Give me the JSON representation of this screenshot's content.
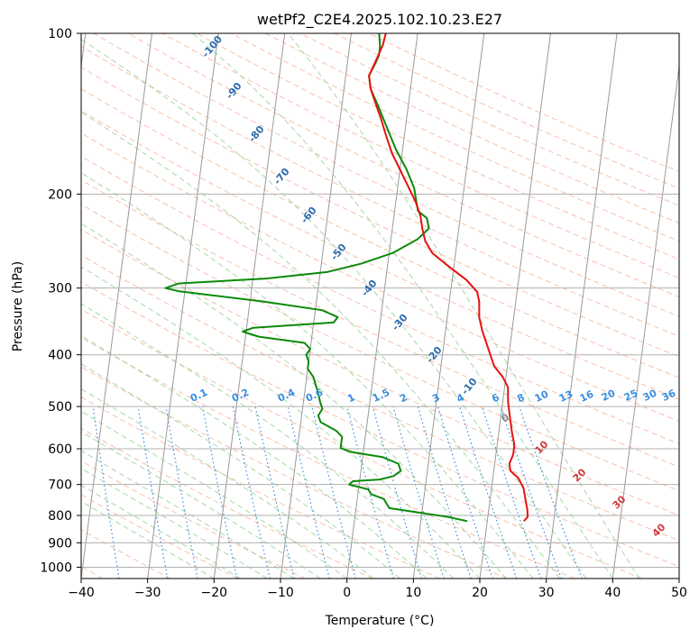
{
  "chart_data": {
    "type": "line",
    "title": "wetPf2_C2E4.2025.102.10.23.E27",
    "xlabel": "Temperature (°C)",
    "ylabel": "Pressure (hPa)",
    "xlim": [
      -40,
      50
    ],
    "ylim": [
      1050,
      100
    ],
    "y_scale": "log",
    "x_ticks": [
      -40,
      -30,
      -20,
      -10,
      0,
      10,
      20,
      30,
      40,
      50
    ],
    "x_tick_labels": [
      "−40",
      "−30",
      "−20",
      "−10",
      "0",
      "10",
      "20",
      "30",
      "40",
      "50"
    ],
    "y_ticks": [
      100,
      200,
      300,
      400,
      500,
      600,
      700,
      800,
      900,
      1000
    ],
    "y_tick_labels": [
      "100",
      "200",
      "300",
      "400",
      "500",
      "600",
      "700",
      "800",
      "900",
      "1000"
    ],
    "grid": true,
    "colors": {
      "temperature": "#e8110f",
      "dewpoint": "#0b8a0b",
      "isotherm": "#9a9a9a",
      "dry_adiabat": "#f4a583",
      "moist_adiabat": "#8fcf8f",
      "mixing_ratio": "#3a8fe0",
      "isohume": "#2b6cb0",
      "wetbulb_zero": "#888888",
      "warm_label": "#d23a3a"
    },
    "series": [
      {
        "key": "temperature",
        "points": [
          [
            25.5,
            820
          ],
          [
            26.0,
            805
          ],
          [
            25.8,
            780
          ],
          [
            25.3,
            745
          ],
          [
            24.8,
            710
          ],
          [
            23.8,
            680
          ],
          [
            22.5,
            660
          ],
          [
            22.2,
            640
          ],
          [
            22.6,
            615
          ],
          [
            22.6,
            590
          ],
          [
            22.0,
            560
          ],
          [
            21.4,
            525
          ],
          [
            20.8,
            490
          ],
          [
            20.5,
            460
          ],
          [
            19.5,
            440
          ],
          [
            18.0,
            420
          ],
          [
            16.8,
            390
          ],
          [
            15.5,
            360
          ],
          [
            14.8,
            340
          ],
          [
            14.5,
            318
          ],
          [
            14.0,
            305
          ],
          [
            12.2,
            290
          ],
          [
            9.0,
            272
          ],
          [
            6.5,
            258
          ],
          [
            5.2,
            245
          ],
          [
            4.5,
            232
          ],
          [
            4.0,
            220
          ],
          [
            3.0,
            207
          ],
          [
            1.5,
            193
          ],
          [
            0.0,
            180
          ],
          [
            -1.5,
            168
          ],
          [
            -2.8,
            155
          ],
          [
            -3.8,
            145
          ],
          [
            -5.0,
            135
          ],
          [
            -6.0,
            127
          ],
          [
            -6.5,
            120
          ],
          [
            -6.0,
            115
          ],
          [
            -5.5,
            110
          ],
          [
            -5.0,
            105
          ],
          [
            -4.8,
            100
          ]
        ]
      },
      {
        "key": "dewpoint",
        "points": [
          [
            17.0,
            820
          ],
          [
            14.0,
            805
          ],
          [
            9.5,
            790
          ],
          [
            5.0,
            775
          ],
          [
            4.5,
            760
          ],
          [
            4.0,
            745
          ],
          [
            2.0,
            730
          ],
          [
            1.5,
            715
          ],
          [
            -1.5,
            700
          ],
          [
            -1.0,
            690
          ],
          [
            3.0,
            685
          ],
          [
            5.0,
            675
          ],
          [
            6.0,
            660
          ],
          [
            5.5,
            640
          ],
          [
            3.0,
            622
          ],
          [
            -2.0,
            608
          ],
          [
            -3.5,
            598
          ],
          [
            -3.5,
            585
          ],
          [
            -3.5,
            570
          ],
          [
            -4.5,
            555
          ],
          [
            -7.0,
            535
          ],
          [
            -7.5,
            520
          ],
          [
            -7.0,
            505
          ],
          [
            -7.5,
            490
          ],
          [
            -8.0,
            470
          ],
          [
            -8.5,
            455
          ],
          [
            -9.0,
            440
          ],
          [
            -10.0,
            425
          ],
          [
            -10.0,
            412
          ],
          [
            -10.5,
            400
          ],
          [
            -10.0,
            390
          ],
          [
            -11.0,
            380
          ],
          [
            -18.0,
            370
          ],
          [
            -20.5,
            362
          ],
          [
            -19.0,
            356
          ],
          [
            -7.0,
            348
          ],
          [
            -6.5,
            340
          ],
          [
            -9.0,
            330
          ],
          [
            -18.0,
            318
          ],
          [
            -31.0,
            304
          ],
          [
            -33.0,
            300
          ],
          [
            -31.0,
            294
          ],
          [
            -18.0,
            288
          ],
          [
            -9.0,
            280
          ],
          [
            -4.0,
            270
          ],
          [
            0.5,
            258
          ],
          [
            4.0,
            243
          ],
          [
            5.5,
            232
          ],
          [
            5.0,
            222
          ],
          [
            3.5,
            215
          ],
          [
            3.0,
            205
          ],
          [
            2.5,
            195
          ],
          [
            1.0,
            180
          ],
          [
            -1.0,
            165
          ],
          [
            -2.8,
            150
          ],
          [
            -4.5,
            137
          ],
          [
            -6.0,
            127
          ],
          [
            -6.5,
            120
          ],
          [
            -5.8,
            114
          ],
          [
            -5.4,
            110
          ],
          [
            -5.4,
            106
          ],
          [
            -5.6,
            103
          ],
          [
            -5.8,
            100
          ]
        ]
      }
    ],
    "isohume_labels": [
      "-100",
      "-90",
      "-80",
      "-70",
      "-60",
      "-50",
      "-40",
      "-30",
      "-20",
      "-10"
    ],
    "mixing_ratio_labels": [
      "0.1",
      "0.2",
      "0.4",
      "0.6",
      "1",
      "1.5",
      "2",
      "3",
      "4",
      "6",
      "8",
      "10",
      "13",
      "16",
      "20",
      "25",
      "30",
      "36"
    ],
    "wetbulb_zero_label": "0",
    "warm_labels": [
      "10",
      "20",
      "30",
      "40"
    ]
  }
}
